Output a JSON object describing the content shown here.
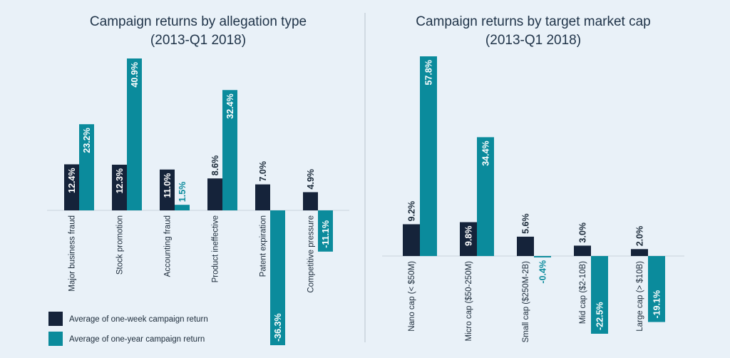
{
  "colors": {
    "week": "#15233a",
    "year": "#0b8b9c",
    "baseline": "#c9d3dd",
    "divider": "#b9c4ce",
    "label_dark": "#1c2b3a",
    "label_teal": "#0b8b9c"
  },
  "legend": {
    "week_label": "Average of one-week campaign return",
    "year_label": "Average of one-year campaign return"
  },
  "chart_data": [
    {
      "type": "bar",
      "title": "Campaign returns by allegation type",
      "subtitle": "(2013-Q1 2018)",
      "categories": [
        "Major business fraud",
        "Stock promotion",
        "Accounting fraud",
        "Product ineffective",
        "Patent expiration",
        "Competitive pressure"
      ],
      "series": [
        {
          "name": "Average of one-week campaign return",
          "values": [
            12.4,
            12.3,
            11.0,
            8.6,
            7.0,
            4.9
          ],
          "labels": [
            "12.4%",
            "12.3%",
            "11.0%",
            "8.6%",
            "7.0%",
            "4.9%"
          ]
        },
        {
          "name": "Average of one-year campaign return",
          "values": [
            23.2,
            40.9,
            1.5,
            32.4,
            -36.3,
            -11.1
          ],
          "labels": [
            "23.2%",
            "40.9%",
            "1.5%",
            "32.4%",
            "-36.3%",
            "-11.1%"
          ]
        }
      ],
      "ylim": [
        -36.3,
        40.9
      ],
      "xlabel": "",
      "ylabel": ""
    },
    {
      "type": "bar",
      "title": "Campaign returns by target market cap",
      "subtitle": "(2013-Q1 2018)",
      "categories": [
        "Nano cap (< $50M)",
        "Micro cap ($50-250M)",
        "Small cap ($250M-2B)",
        "Mid cap ($2-10B)",
        "Large cap (> $10B)"
      ],
      "series": [
        {
          "name": "Average of one-week campaign return",
          "values": [
            9.2,
            9.8,
            5.6,
            3.0,
            2.0
          ],
          "labels": [
            "9.2%",
            "9.8%",
            "5.6%",
            "3.0%",
            "2.0%"
          ]
        },
        {
          "name": "Average of one-year campaign return",
          "values": [
            57.8,
            34.4,
            -0.4,
            -22.5,
            -19.1
          ],
          "labels": [
            "57.8%",
            "34.4%",
            "-0.4%",
            "-22.5%",
            "-19.1%"
          ]
        }
      ],
      "ylim": [
        -22.5,
        57.8
      ],
      "xlabel": "",
      "ylabel": ""
    }
  ]
}
